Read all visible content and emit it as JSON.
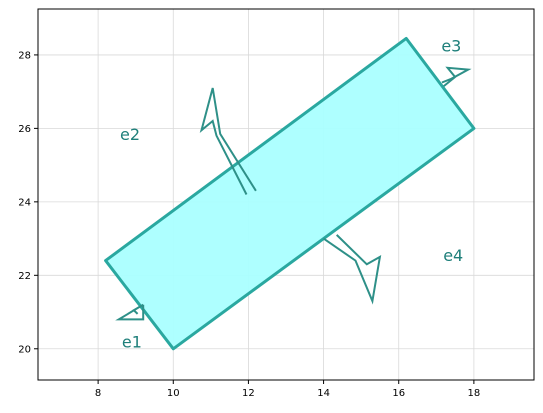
{
  "chart_data": {
    "type": "diagram",
    "xlim": [
      6.4,
      19.6
    ],
    "ylim": [
      19.15,
      29.25
    ],
    "xticks": [
      8,
      10,
      12,
      14,
      16,
      18
    ],
    "yticks": [
      20,
      22,
      24,
      26,
      28
    ],
    "grid": true,
    "rectangle": {
      "vertices": [
        [
          10,
          20
        ],
        [
          18,
          26
        ],
        [
          16.2,
          28.45
        ],
        [
          8.2,
          22.4
        ]
      ],
      "fill_color": "#aaffff",
      "edge_color": "#2aa8a0"
    },
    "arrow_color": "#2e9088",
    "label_color": "#1e7f7a",
    "arrows": [
      {
        "name": "e1",
        "points": [
          [
            9.05,
            20.95
          ],
          [
            8.95,
            21.05
          ],
          [
            9.2,
            21.2
          ],
          [
            8.55,
            20.8
          ],
          [
            9.2,
            20.8
          ],
          [
            9.2,
            21.2
          ]
        ]
      },
      {
        "name": "e2",
        "points": [
          [
            11.95,
            24.2
          ],
          [
            11.15,
            25.8
          ],
          [
            11.05,
            26.2
          ],
          [
            10.75,
            25.95
          ],
          [
            11.05,
            27.1
          ],
          [
            11.25,
            25.85
          ],
          [
            12.2,
            24.3
          ]
        ]
      },
      {
        "name": "e3",
        "points": [
          [
            17.2,
            27.15
          ],
          [
            17.5,
            27.4
          ],
          [
            17.3,
            27.65
          ],
          [
            17.85,
            27.6
          ],
          [
            17.4,
            27.35
          ],
          [
            17.15,
            27.25
          ]
        ]
      },
      {
        "name": "e4",
        "points": [
          [
            14.35,
            23.1
          ],
          [
            15.15,
            22.3
          ],
          [
            15.5,
            22.5
          ],
          [
            15.3,
            21.3
          ],
          [
            14.85,
            22.4
          ],
          [
            14.0,
            23.0
          ]
        ]
      }
    ],
    "edge_labels": [
      {
        "text": "e1",
        "x": 8.9,
        "y": 20.2
      },
      {
        "text": "e2",
        "x": 8.85,
        "y": 25.85
      },
      {
        "text": "e3",
        "x": 17.4,
        "y": 28.25
      },
      {
        "text": "e4",
        "x": 17.45,
        "y": 22.55
      }
    ]
  }
}
